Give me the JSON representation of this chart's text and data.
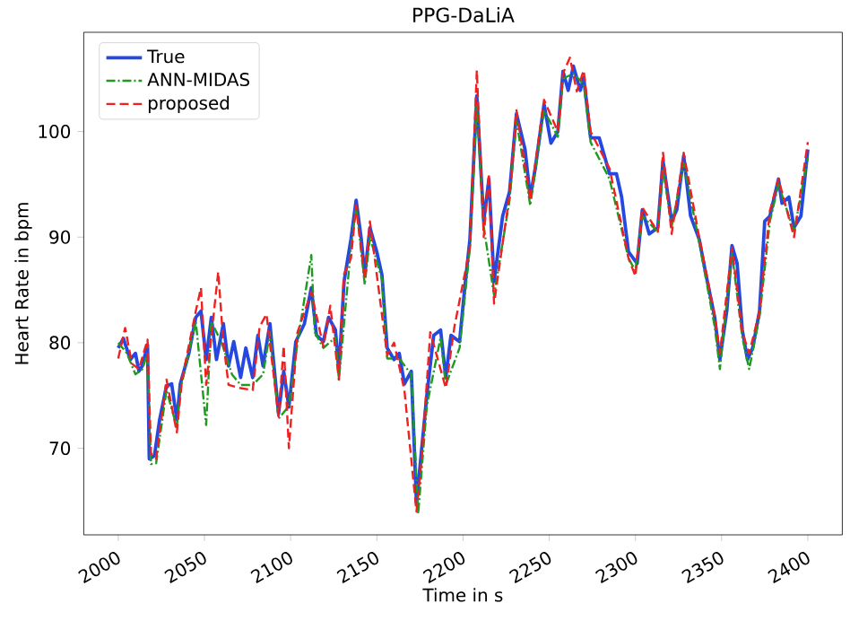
{
  "chart_data": {
    "type": "line",
    "title": "PPG-DaLiA",
    "xlabel": "Time in s",
    "ylabel": "Heart Rate in bpm",
    "xlim": [
      1980,
      2420
    ],
    "ylim": [
      61.8,
      109.4
    ],
    "xticks": [
      2000,
      2050,
      2100,
      2150,
      2200,
      2250,
      2300,
      2350,
      2400
    ],
    "yticks": [
      70,
      80,
      90,
      100
    ],
    "legend": "top left",
    "grid": false,
    "series": [
      {
        "name": "True",
        "color": "#2448e0",
        "line_style": "solid",
        "x": [
          2000,
          2003,
          2007,
          2010,
          2012,
          2014,
          2017,
          2018,
          2021,
          2024,
          2028,
          2031,
          2034,
          2036,
          2041,
          2045,
          2048,
          2051,
          2054,
          2057,
          2061,
          2064,
          2067,
          2071,
          2074,
          2078,
          2081,
          2084,
          2088,
          2093,
          2096,
          2099,
          2103,
          2108,
          2112,
          2115,
          2119,
          2122,
          2126,
          2128,
          2131,
          2135,
          2138,
          2141,
          2143,
          2146,
          2150,
          2153,
          2156,
          2160,
          2163,
          2166,
          2170,
          2173,
          2175,
          2179,
          2183,
          2187,
          2190,
          2193,
          2198,
          2201,
          2204,
          2208,
          2212,
          2215,
          2218,
          2223,
          2227,
          2231,
          2236,
          2239,
          2242,
          2247,
          2251,
          2255,
          2258,
          2261,
          2264,
          2268,
          2270,
          2274,
          2279,
          2282,
          2285,
          2289,
          2292,
          2296,
          2301,
          2304,
          2308,
          2313,
          2316,
          2321,
          2324,
          2328,
          2332,
          2337,
          2341,
          2346,
          2349,
          2353,
          2356,
          2359,
          2362,
          2365,
          2368,
          2372,
          2375,
          2378,
          2383,
          2385,
          2389,
          2392,
          2396,
          2400
        ],
        "values": [
          79.5,
          80.4,
          78.4,
          79,
          77.3,
          77.8,
          79.8,
          69,
          69.3,
          72.7,
          75.9,
          76.1,
          72.7,
          76.1,
          79,
          82.4,
          83,
          78.4,
          82.4,
          78.4,
          81.8,
          77.8,
          80.1,
          76.7,
          79.5,
          76.7,
          80.7,
          77.8,
          81.8,
          73.3,
          77.3,
          73.9,
          80.1,
          81.8,
          85.2,
          80.7,
          80.1,
          82.4,
          81.2,
          77.3,
          85.8,
          89.8,
          93.5,
          89.8,
          86.4,
          90.9,
          88.6,
          86.4,
          79.5,
          78.4,
          79,
          76.1,
          77.3,
          64.8,
          68.2,
          75,
          80.7,
          81.2,
          76.7,
          80.7,
          80.1,
          85.2,
          89.8,
          103.4,
          91.5,
          95.5,
          85.8,
          92,
          94.3,
          101.7,
          98.3,
          93.8,
          96.6,
          102.6,
          98.9,
          100,
          105.7,
          103.9,
          106.2,
          103.9,
          105.1,
          99.4,
          99.4,
          97.7,
          96,
          96,
          93.8,
          88.6,
          87.5,
          92.6,
          90.3,
          90.9,
          97.2,
          91.5,
          92.6,
          97.7,
          92,
          89.8,
          86.4,
          82.4,
          78.4,
          83,
          89.2,
          87.5,
          81.2,
          78.4,
          79.5,
          83,
          91.5,
          92,
          95.5,
          93.2,
          93.8,
          90.9,
          92,
          98.3
        ]
      },
      {
        "name": "ANN-MIDAS",
        "color": "#1e9a1e",
        "line_style": "dashdot",
        "x": [
          2000,
          2005,
          2010,
          2014,
          2017,
          2019,
          2022,
          2028,
          2034,
          2036,
          2045,
          2051,
          2054,
          2060,
          2066,
          2071,
          2078,
          2084,
          2088,
          2093,
          2099,
          2104,
          2112,
          2114,
          2119,
          2126,
          2128,
          2135,
          2138,
          2143,
          2146,
          2153,
          2156,
          2163,
          2170,
          2174,
          2179,
          2187,
          2190,
          2198,
          2204,
          2208,
          2212,
          2218,
          2227,
          2231,
          2239,
          2247,
          2255,
          2258,
          2264,
          2270,
          2274,
          2285,
          2296,
          2300,
          2304,
          2313,
          2316,
          2321,
          2328,
          2337,
          2346,
          2349,
          2356,
          2362,
          2366,
          2372,
          2378,
          2383,
          2392,
          2400
        ],
        "values": [
          80,
          79,
          77,
          77.5,
          79,
          68.5,
          68.6,
          75.5,
          72,
          75.5,
          82,
          72.2,
          82,
          80,
          77,
          76,
          76,
          77,
          81,
          72.8,
          74,
          80,
          88.3,
          81,
          79.5,
          80.5,
          76.5,
          89,
          93,
          85.5,
          90,
          86,
          78.5,
          78.5,
          77,
          63.8,
          74,
          80.5,
          76,
          79.5,
          89,
          102.5,
          91,
          84.5,
          93.5,
          101,
          93,
          102,
          99.5,
          105,
          105.5,
          104.5,
          99,
          95.5,
          88,
          86.8,
          92,
          90.5,
          96.5,
          91,
          97,
          89.5,
          81.5,
          77.5,
          88.5,
          80.5,
          77.5,
          82.5,
          91.5,
          95,
          90.5,
          97.5
        ]
      },
      {
        "name": "proposed",
        "color": "#f02020",
        "line_style": "dashed",
        "x": [
          2000,
          2004,
          2008,
          2012,
          2017,
          2019,
          2022,
          2028,
          2034,
          2037,
          2045,
          2048,
          2051,
          2058,
          2061,
          2064,
          2071,
          2078,
          2082,
          2086,
          2093,
          2096,
          2099,
          2104,
          2112,
          2119,
          2123,
          2128,
          2131,
          2135,
          2138,
          2143,
          2146,
          2156,
          2160,
          2166,
          2173,
          2176,
          2181,
          2190,
          2195,
          2204,
          2208,
          2212,
          2215,
          2218,
          2227,
          2231,
          2239,
          2247,
          2255,
          2258,
          2262,
          2266,
          2270,
          2274,
          2285,
          2296,
          2300,
          2304,
          2313,
          2316,
          2321,
          2328,
          2337,
          2346,
          2349,
          2356,
          2362,
          2366,
          2372,
          2378,
          2383,
          2392,
          2400
        ],
        "values": [
          78.5,
          81.4,
          78,
          77.5,
          80.3,
          69.5,
          69,
          76.5,
          71.5,
          76.5,
          83,
          85.2,
          76,
          86.7,
          80,
          76,
          75.7,
          75.5,
          81.5,
          82.7,
          73,
          79.7,
          70,
          81,
          84.8,
          79.6,
          83.5,
          76.5,
          86.5,
          88,
          93,
          86,
          91.5,
          78.8,
          80,
          75.5,
          64,
          69,
          81,
          75.7,
          81.5,
          89,
          105.8,
          90,
          96,
          83.7,
          94,
          102,
          93.5,
          103,
          100,
          105.5,
          107,
          103.8,
          105.8,
          100,
          96.5,
          88,
          86.3,
          92.8,
          90.5,
          98,
          90.3,
          98,
          90,
          82.5,
          79,
          89,
          81,
          79,
          83,
          92.5,
          95.5,
          90,
          99
        ]
      }
    ]
  }
}
